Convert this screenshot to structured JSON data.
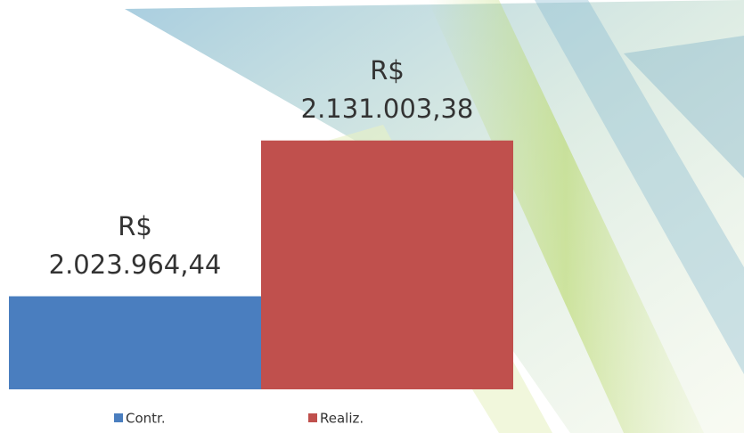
{
  "chart_data": {
    "type": "bar",
    "categories": [
      null
    ],
    "series": [
      {
        "name": "Contr.",
        "color": "#4a7ebf",
        "values": [
          2023964.44
        ],
        "value_labels": [
          "R$ 2.023.964,44"
        ]
      },
      {
        "name": "Realiz.",
        "color": "#c0504d",
        "values": [
          2131003.38
        ],
        "value_labels": [
          "R$ 2.131.003,38"
        ]
      }
    ],
    "ylim": [
      1960000,
      2140000
    ]
  }
}
